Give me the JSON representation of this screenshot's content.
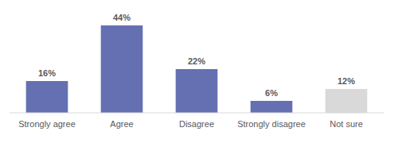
{
  "chart_data": {
    "type": "bar",
    "categories": [
      "Strongly agree",
      "Agree",
      "Disagree",
      "Strongly disagree",
      "Not sure"
    ],
    "values": [
      16,
      44,
      22,
      6,
      12
    ],
    "value_labels": [
      "16%",
      "44%",
      "22%",
      "6%",
      "12%"
    ],
    "colors": [
      "#6470b1",
      "#6470b1",
      "#6470b1",
      "#6470b1",
      "#d9d9d9"
    ],
    "ylim": [
      0,
      50
    ],
    "data_labels": true,
    "tick_labels": "x",
    "grid": false
  }
}
